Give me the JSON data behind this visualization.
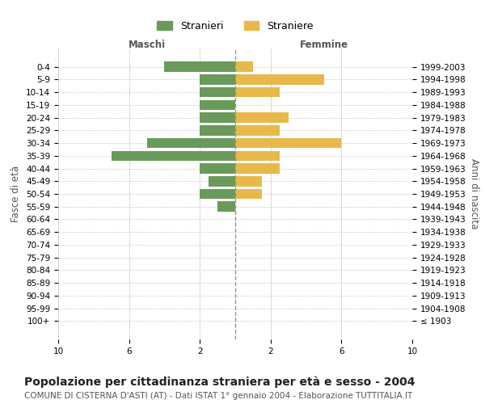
{
  "age_groups": [
    "100+",
    "95-99",
    "90-94",
    "85-89",
    "80-84",
    "75-79",
    "70-74",
    "65-69",
    "60-64",
    "55-59",
    "50-54",
    "45-49",
    "40-44",
    "35-39",
    "30-34",
    "25-29",
    "20-24",
    "15-19",
    "10-14",
    "5-9",
    "0-4"
  ],
  "birth_years": [
    "≤ 1903",
    "1904-1908",
    "1909-1913",
    "1914-1918",
    "1919-1923",
    "1924-1928",
    "1929-1933",
    "1934-1938",
    "1939-1943",
    "1944-1948",
    "1949-1953",
    "1954-1958",
    "1959-1963",
    "1964-1968",
    "1969-1973",
    "1974-1978",
    "1979-1983",
    "1984-1988",
    "1989-1993",
    "1994-1998",
    "1999-2003"
  ],
  "males": [
    0,
    0,
    0,
    0,
    0,
    0,
    0,
    0,
    0,
    1,
    2,
    1.5,
    2,
    7,
    5,
    2,
    2,
    2,
    2,
    2,
    4
  ],
  "females": [
    0,
    0,
    0,
    0,
    0,
    0,
    0,
    0,
    0,
    0,
    1.5,
    1.5,
    2.5,
    2.5,
    6,
    2.5,
    3,
    0,
    2.5,
    5,
    1
  ],
  "male_color": "#6a9a5a",
  "female_color": "#e8b84b",
  "bar_height": 0.8,
  "xlim": 10,
  "title": "Popolazione per cittadinanza straniera per età e sesso - 2004",
  "subtitle": "COMUNE DI CISTERNA D'ASTI (AT) - Dati ISTAT 1° gennaio 2004 - Elaborazione TUTTITALIA.IT",
  "xlabel_left": "Maschi",
  "xlabel_right": "Femmine",
  "ylabel_left": "Fasce di età",
  "ylabel_right": "Anni di nascita",
  "legend_stranieri": "Stranieri",
  "legend_straniere": "Straniere",
  "xticks": [
    10,
    6,
    2,
    2,
    6,
    10
  ],
  "grid_color": "#cccccc",
  "background_color": "#ffffff",
  "center_line_color": "#999966",
  "title_fontsize": 10,
  "subtitle_fontsize": 7.5,
  "tick_fontsize": 7.5,
  "label_fontsize": 8.5,
  "legend_fontsize": 9
}
